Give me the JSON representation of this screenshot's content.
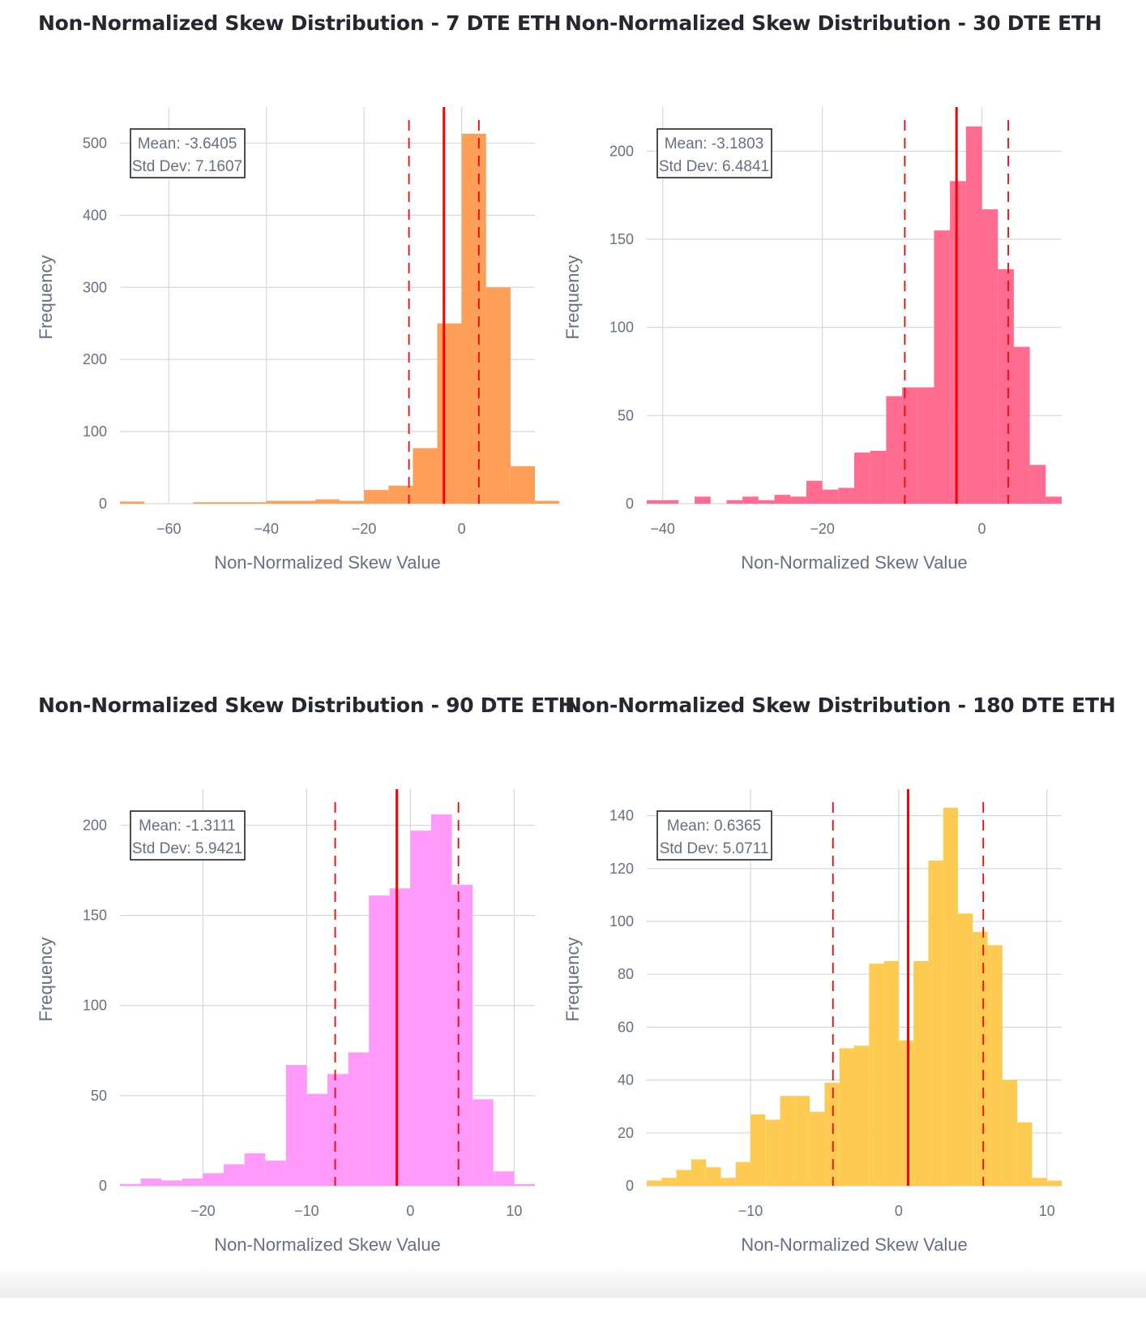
{
  "chart_data": [
    {
      "type": "bar",
      "title": "Non-Normalized Skew Distribution - 7 DTE ETH",
      "xlabel": "Non-Normalized Skew Value",
      "ylabel": "Frequency",
      "color": "#ff9e57",
      "xlim": [
        -70,
        15
      ],
      "ylim": [
        0,
        550
      ],
      "xticks": [
        -60,
        -40,
        -20,
        0
      ],
      "xtick_labels": [
        "−60",
        "−40",
        "−20",
        "0"
      ],
      "yticks": [
        0,
        100,
        200,
        300,
        400,
        500
      ],
      "bin_width": 5,
      "bins": [
        [
          -70,
          3
        ],
        [
          -65,
          0
        ],
        [
          -60,
          0
        ],
        [
          -55,
          2
        ],
        [
          -50,
          2
        ],
        [
          -45,
          2
        ],
        [
          -40,
          4
        ],
        [
          -35,
          4
        ],
        [
          -30,
          6
        ],
        [
          -25,
          4
        ],
        [
          -20,
          19
        ],
        [
          -15,
          25
        ],
        [
          -10,
          77
        ],
        [
          -5,
          250
        ],
        [
          0,
          513
        ],
        [
          5,
          300
        ],
        [
          10,
          52
        ],
        [
          15,
          4
        ]
      ],
      "mean": -3.6405,
      "std": 7.1607,
      "mean_label": "Mean: -3.6405",
      "std_label": "Std Dev: 7.1607",
      "grid": true
    },
    {
      "type": "bar",
      "title": "Non-Normalized Skew Distribution - 30 DTE ETH",
      "xlabel": "Non-Normalized Skew Value",
      "ylabel": "Frequency",
      "color": "#ff6c8f",
      "xlim": [
        -42,
        10
      ],
      "ylim": [
        0,
        225
      ],
      "xticks": [
        -40,
        -20,
        0
      ],
      "xtick_labels": [
        "−40",
        "−20",
        "0"
      ],
      "yticks": [
        0,
        50,
        100,
        150,
        200
      ],
      "bin_width": 2,
      "bins": [
        [
          -42,
          2
        ],
        [
          -40,
          2
        ],
        [
          -38,
          0
        ],
        [
          -36,
          4
        ],
        [
          -34,
          0
        ],
        [
          -32,
          2
        ],
        [
          -30,
          4
        ],
        [
          -28,
          2
        ],
        [
          -26,
          5
        ],
        [
          -24,
          4
        ],
        [
          -22,
          13
        ],
        [
          -20,
          8
        ],
        [
          -18,
          9
        ],
        [
          -16,
          29
        ],
        [
          -14,
          30
        ],
        [
          -12,
          61
        ],
        [
          -10,
          66
        ],
        [
          -8,
          66
        ],
        [
          -6,
          155
        ],
        [
          -4,
          183
        ],
        [
          -2,
          214
        ],
        [
          0,
          167
        ],
        [
          2,
          133
        ],
        [
          4,
          89
        ],
        [
          6,
          22
        ],
        [
          8,
          4
        ]
      ],
      "mean": -3.1803,
      "std": 6.4841,
      "mean_label": "Mean: -3.1803",
      "std_label": "Std Dev: 6.4841",
      "grid": true
    },
    {
      "type": "bar",
      "title": "Non-Normalized Skew Distribution - 90 DTE ETH",
      "xlabel": "Non-Normalized Skew Value",
      "ylabel": "Frequency",
      "color": "#ff9afb",
      "xlim": [
        -28,
        12
      ],
      "ylim": [
        0,
        220
      ],
      "xticks": [
        -20,
        -10,
        0,
        10
      ],
      "xtick_labels": [
        "−20",
        "−10",
        "0",
        "10"
      ],
      "yticks": [
        0,
        50,
        100,
        150,
        200
      ],
      "bin_width": 2,
      "bins": [
        [
          -28,
          1
        ],
        [
          -26,
          4
        ],
        [
          -24,
          3
        ],
        [
          -22,
          4
        ],
        [
          -20,
          7
        ],
        [
          -18,
          12
        ],
        [
          -16,
          18
        ],
        [
          -14,
          14
        ],
        [
          -12,
          67
        ],
        [
          -10,
          51
        ],
        [
          -8,
          62
        ],
        [
          -6,
          74
        ],
        [
          -4,
          161
        ],
        [
          -2,
          165
        ],
        [
          0,
          197
        ],
        [
          2,
          206
        ],
        [
          4,
          167
        ],
        [
          6,
          48
        ],
        [
          8,
          8
        ],
        [
          10,
          1
        ]
      ],
      "mean": -1.3111,
      "std": 5.9421,
      "mean_label": "Mean: -1.3111",
      "std_label": "Std Dev: 5.9421",
      "grid": true
    },
    {
      "type": "bar",
      "title": "Non-Normalized Skew Distribution - 180 DTE ETH",
      "xlabel": "Non-Normalized Skew Value",
      "ylabel": "Frequency",
      "color": "#fdcb52",
      "xlim": [
        -17,
        11
      ],
      "ylim": [
        0,
        150
      ],
      "xticks": [
        -10,
        0,
        10
      ],
      "xtick_labels": [
        "−10",
        "0",
        "10"
      ],
      "yticks": [
        0,
        20,
        40,
        60,
        80,
        100,
        120,
        140
      ],
      "bin_width": 1,
      "bins": [
        [
          -17,
          2
        ],
        [
          -16,
          3
        ],
        [
          -15,
          6
        ],
        [
          -14,
          10
        ],
        [
          -13,
          7
        ],
        [
          -12,
          3
        ],
        [
          -11,
          9
        ],
        [
          -10,
          27
        ],
        [
          -9,
          25
        ],
        [
          -8,
          34
        ],
        [
          -7,
          34
        ],
        [
          -6,
          28
        ],
        [
          -5,
          39
        ],
        [
          -4,
          52
        ],
        [
          -3,
          53
        ],
        [
          -2,
          84
        ],
        [
          -1,
          85
        ],
        [
          0,
          55
        ],
        [
          1,
          85
        ],
        [
          2,
          123
        ],
        [
          3,
          143
        ],
        [
          4,
          103
        ],
        [
          5,
          96
        ],
        [
          6,
          91
        ],
        [
          7,
          40
        ],
        [
          8,
          24
        ],
        [
          9,
          3
        ],
        [
          10,
          2
        ]
      ],
      "mean": 0.6365,
      "std": 5.0711,
      "mean_label": "Mean: 0.6365",
      "std_label": "Std Dev: 5.0711",
      "grid": true
    }
  ]
}
